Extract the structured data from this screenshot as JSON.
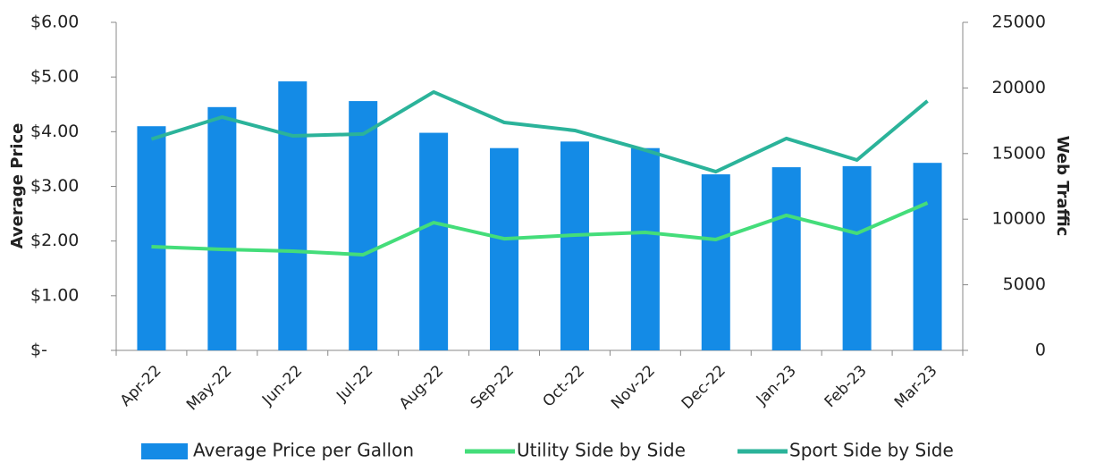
{
  "chart_data": {
    "type": "bar",
    "ylabel": "Average Price",
    "y2label": "Web Traffic",
    "categories": [
      "Apr-22",
      "May-22",
      "Jun-22",
      "Jul-22",
      "Aug-22",
      "Sep-22",
      "Oct-22",
      "Nov-22",
      "Dec-22",
      "Jan-23",
      "Feb-23",
      "Mar-23"
    ],
    "series": [
      {
        "name": "Average Price per Gallon",
        "type": "bar",
        "color": "#148be6",
        "values": [
          4.1,
          4.45,
          4.92,
          4.56,
          3.98,
          3.7,
          3.82,
          3.7,
          3.22,
          3.35,
          3.37,
          3.43
        ]
      },
      {
        "name": "Utility Side by Side",
        "type": "line",
        "axis": "y2",
        "color": "#44dd7a",
        "values": [
          7900,
          7700,
          7560,
          7290,
          9740,
          8510,
          8790,
          8990,
          8450,
          10290,
          8920,
          11240
        ]
      },
      {
        "name": "Sport Side by Side",
        "type": "line",
        "axis": "y2",
        "color": "#2bb39a",
        "values": [
          16100,
          17780,
          16350,
          16490,
          19690,
          17370,
          16760,
          15260,
          13620,
          16150,
          14510,
          19010
        ]
      }
    ],
    "ylim": [
      0,
      6
    ],
    "yticks": [
      {
        "value": 0,
        "label": "$-"
      },
      {
        "value": 1,
        "label": "$1.00"
      },
      {
        "value": 2,
        "label": "$2.00"
      },
      {
        "value": 3,
        "label": "$3.00"
      },
      {
        "value": 4,
        "label": "$4.00"
      },
      {
        "value": 5,
        "label": "$5.00"
      },
      {
        "value": 6,
        "label": "$6.00"
      }
    ],
    "y2lim": [
      0,
      25000
    ],
    "y2ticks": [
      0,
      5000,
      10000,
      15000,
      20000,
      25000
    ],
    "legend": "bottom"
  }
}
